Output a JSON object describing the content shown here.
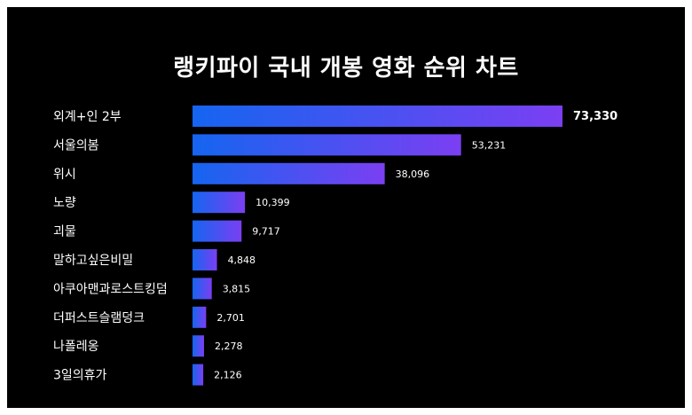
{
  "chart_data": {
    "type": "bar",
    "orientation": "horizontal",
    "title": "랭키파이 국내 개봉 영화 순위 차트",
    "categories": [
      "외계+인 2부",
      "서울의봄",
      "위시",
      "노량",
      "괴물",
      "말하고싶은비밀",
      "아쿠아맨과로스트킹덤",
      "더퍼스트슬램덩크",
      "나폴레옹",
      "3일의휴가"
    ],
    "values": [
      73330,
      53231,
      38096,
      10399,
      9717,
      4848,
      3815,
      2701,
      2278,
      2126
    ],
    "value_labels": [
      "73,330",
      "53,231",
      "38,096",
      "10,399",
      "9,717",
      "4,848",
      "3,815",
      "2,701",
      "2,278",
      "2,126"
    ],
    "xlabel": "",
    "ylabel": "",
    "grid": false,
    "legend": "none"
  },
  "colors": {
    "background": "#000000",
    "bar_start": "#1565f0",
    "bar_end": "#7b3ff2",
    "text": "#ffffff"
  }
}
